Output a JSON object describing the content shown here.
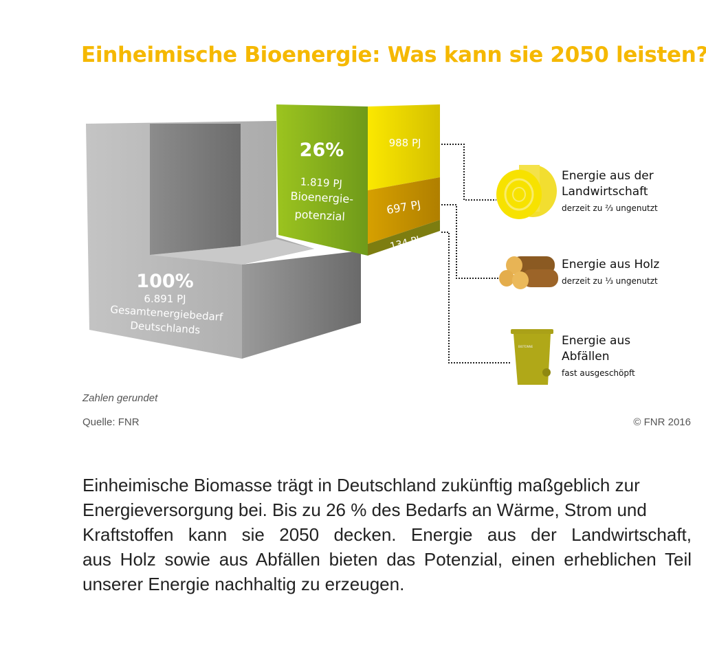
{
  "title": "Einheimische Bioenergie: Was kann sie 2050 leisten?",
  "total": {
    "percent": "100%",
    "value": "6.891 PJ",
    "label_line1": "Gesamtenergiebedarf",
    "label_line2": "Deutschlands"
  },
  "bio": {
    "percent": "26%",
    "value": "1.819 PJ",
    "label_line1": "Bioenergie-",
    "label_line2": "potenzial"
  },
  "segments": [
    {
      "value": "988 PJ",
      "color": "#f2e000"
    },
    {
      "value": "697 PJ",
      "color": "#c99300"
    },
    {
      "value": "134 PJ",
      "color": "#7d7d10"
    }
  ],
  "sources": [
    {
      "title_line1": "Energie aus der",
      "title_line2": "Landwirtschaft",
      "note": "derzeit zu ⅔ ungenutzt",
      "icon": "hay-bale-icon"
    },
    {
      "title_line1": "Energie aus Holz",
      "note": "derzeit zu ⅓ ungenutzt",
      "icon": "logs-icon"
    },
    {
      "title_line1": "Energie aus",
      "title_line2": "Abfällen",
      "note": "fast ausgeschöpft",
      "icon": "bio-bin-icon",
      "bin_label": "BIOTONNE"
    }
  ],
  "footnote": "Zahlen gerundet",
  "source": "Quelle: FNR",
  "copyright": "© FNR 2016",
  "paragraph": [
    "Einheimische Biomasse trägt in Deutschland zukünftig maßgeblich zur",
    "Energieversorgung bei. Bis zu 26 % des Bedarfs an Wärme, Strom und",
    "Kraftstoffen kann sie 2050 decken. Energie aus der Landwirtschaft,",
    "aus Holz sowie aus Abfällen bieten das Potenzial, einen erheblichen Teil",
    "unserer Energie nachhaltig zu erzeugen."
  ],
  "colors": {
    "title": "#f5b800",
    "green": "#8dbb1e"
  }
}
